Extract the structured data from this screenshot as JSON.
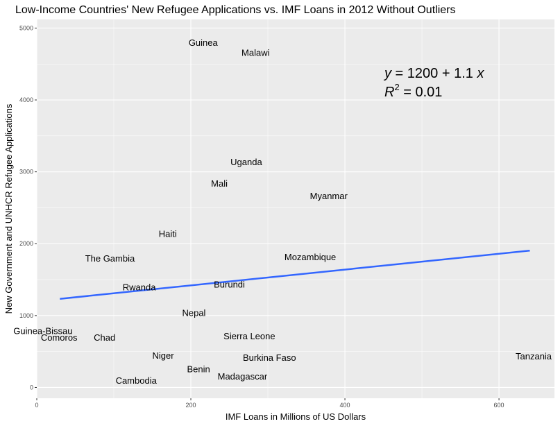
{
  "chart_data": {
    "type": "scatter",
    "title": "Low-Income Countries' New Refugee Applications vs. IMF Loans in 2012 Without Outliers",
    "xlabel": "IMF Loans in Millions of US Dollars",
    "ylabel": "New Government and UNHCR Refugee Applications",
    "xlim": [
      0,
      672
    ],
    "ylim": [
      -150,
      5120
    ],
    "x_ticks": [
      0,
      200,
      400,
      600
    ],
    "y_ticks": [
      0,
      1000,
      2000,
      3000,
      4000,
      5000
    ],
    "grid": true,
    "points": [
      {
        "label": "Guinea",
        "x": 216,
        "y": 4800
      },
      {
        "label": "Malawi",
        "x": 284,
        "y": 4660
      },
      {
        "label": "Uganda",
        "x": 272,
        "y": 3140
      },
      {
        "label": "Mali",
        "x": 237,
        "y": 2840
      },
      {
        "label": "Myanmar",
        "x": 379,
        "y": 2670
      },
      {
        "label": "Haiti",
        "x": 170,
        "y": 2140
      },
      {
        "label": "The Gambia",
        "x": 95,
        "y": 1800
      },
      {
        "label": "Mozambique",
        "x": 355,
        "y": 1820
      },
      {
        "label": "Rwanda",
        "x": 133,
        "y": 1400
      },
      {
        "label": "Burundi",
        "x": 250,
        "y": 1440
      },
      {
        "label": "Nepal",
        "x": 204,
        "y": 1040
      },
      {
        "label": "Guinea-Bissau",
        "x": 8,
        "y": 790
      },
      {
        "label": "Comoros",
        "x": 29,
        "y": 700
      },
      {
        "label": "Chad",
        "x": 88,
        "y": 700
      },
      {
        "label": "Sierra Leone",
        "x": 276,
        "y": 720
      },
      {
        "label": "Niger",
        "x": 164,
        "y": 450
      },
      {
        "label": "Burkina Faso",
        "x": 302,
        "y": 420
      },
      {
        "label": "Tanzania",
        "x": 645,
        "y": 440
      },
      {
        "label": "Benin",
        "x": 210,
        "y": 260
      },
      {
        "label": "Madagascar",
        "x": 267,
        "y": 160
      },
      {
        "label": "Cambodia",
        "x": 129,
        "y": 100
      }
    ],
    "fit_line": {
      "x": [
        30,
        640
      ],
      "intercept": 1200,
      "slope": 1.1,
      "color": "#3366FF"
    },
    "annotation": {
      "equation_y": "y",
      "equation_rest": " = 1200 + 1.1 ",
      "equation_x": "x",
      "r2_label": "R",
      "r2_power": "2",
      "r2_rest": " = 0.01"
    },
    "colors": {
      "panel": "#EBEBEB",
      "grid_major": "#FFFFFF",
      "tick_text": "#4D4D4D"
    }
  }
}
